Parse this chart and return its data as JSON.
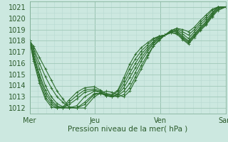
{
  "xlabel": "Pression niveau de la mer( hPa )",
  "bg_color": "#cce8e0",
  "grid_color_major": "#a0c8b8",
  "grid_color_minor": "#b8d8d0",
  "line_color": "#2d6e2d",
  "ylim": [
    1011.5,
    1021.5
  ],
  "yticks": [
    1012,
    1013,
    1014,
    1015,
    1016,
    1017,
    1018,
    1019,
    1020,
    1021
  ],
  "day_positions": [
    0.0,
    0.333,
    0.667,
    1.0
  ],
  "day_labels": [
    "Mer",
    "Jeu",
    "Ven",
    "Sam"
  ],
  "series": [
    {
      "x": [
        0.0,
        0.02,
        0.05,
        0.08,
        0.11,
        0.14,
        0.17,
        0.2,
        0.24,
        0.28,
        0.33,
        0.36,
        0.39,
        0.42,
        0.45,
        0.48,
        0.51,
        0.54,
        0.57,
        0.6,
        0.63,
        0.66,
        0.69,
        0.72,
        0.75,
        0.78,
        0.81,
        0.84,
        0.87,
        0.9,
        0.93,
        0.96,
        1.0
      ],
      "y": [
        1018.0,
        1017.5,
        1016.5,
        1015.5,
        1014.5,
        1013.5,
        1012.8,
        1012.1,
        1012.0,
        1012.0,
        1013.0,
        1013.3,
        1013.5,
        1013.4,
        1013.2,
        1013.0,
        1013.5,
        1014.5,
        1015.5,
        1016.5,
        1017.5,
        1018.0,
        1018.5,
        1018.9,
        1019.1,
        1019.0,
        1018.8,
        1019.2,
        1019.8,
        1020.3,
        1020.8,
        1021.0,
        1021.0
      ]
    },
    {
      "x": [
        0.0,
        0.02,
        0.05,
        0.08,
        0.11,
        0.14,
        0.17,
        0.2,
        0.24,
        0.28,
        0.33,
        0.36,
        0.39,
        0.42,
        0.45,
        0.48,
        0.51,
        0.54,
        0.57,
        0.6,
        0.63,
        0.66,
        0.69,
        0.72,
        0.75,
        0.78,
        0.81,
        0.84,
        0.87,
        0.9,
        0.93,
        0.96,
        1.0
      ],
      "y": [
        1018.0,
        1017.3,
        1016.0,
        1014.8,
        1013.8,
        1013.0,
        1012.5,
        1012.1,
        1012.0,
        1012.3,
        1013.2,
        1013.3,
        1013.2,
        1013.1,
        1013.0,
        1013.2,
        1013.8,
        1014.8,
        1015.8,
        1016.7,
        1017.5,
        1018.1,
        1018.5,
        1018.9,
        1019.1,
        1018.8,
        1018.5,
        1019.0,
        1019.6,
        1020.1,
        1020.7,
        1021.0,
        1021.0
      ]
    },
    {
      "x": [
        0.0,
        0.02,
        0.05,
        0.08,
        0.11,
        0.14,
        0.17,
        0.2,
        0.24,
        0.28,
        0.33,
        0.36,
        0.39,
        0.42,
        0.45,
        0.48,
        0.51,
        0.54,
        0.57,
        0.6,
        0.63,
        0.66,
        0.69,
        0.72,
        0.75,
        0.78,
        0.81,
        0.84,
        0.87,
        0.9,
        0.93,
        0.96,
        1.0
      ],
      "y": [
        1018.0,
        1017.1,
        1015.5,
        1014.0,
        1013.0,
        1012.4,
        1012.1,
        1012.0,
        1012.0,
        1012.5,
        1013.3,
        1013.3,
        1013.1,
        1013.0,
        1013.1,
        1013.5,
        1014.2,
        1015.2,
        1016.2,
        1017.0,
        1017.7,
        1018.2,
        1018.5,
        1018.8,
        1019.0,
        1018.6,
        1018.2,
        1018.8,
        1019.4,
        1019.9,
        1020.5,
        1021.0,
        1021.0
      ]
    },
    {
      "x": [
        0.0,
        0.02,
        0.05,
        0.08,
        0.11,
        0.14,
        0.17,
        0.2,
        0.24,
        0.28,
        0.33,
        0.36,
        0.39,
        0.42,
        0.45,
        0.48,
        0.51,
        0.54,
        0.57,
        0.6,
        0.63,
        0.66,
        0.69,
        0.72,
        0.75,
        0.78,
        0.81,
        0.84,
        0.87,
        0.9,
        0.93,
        0.96,
        1.0
      ],
      "y": [
        1018.0,
        1016.8,
        1015.0,
        1013.6,
        1012.7,
        1012.2,
        1012.0,
        1012.0,
        1012.2,
        1013.0,
        1013.5,
        1013.4,
        1013.1,
        1013.0,
        1013.2,
        1013.8,
        1014.7,
        1015.6,
        1016.5,
        1017.2,
        1017.8,
        1018.3,
        1018.5,
        1018.8,
        1018.9,
        1018.4,
        1018.0,
        1018.6,
        1019.2,
        1019.7,
        1020.4,
        1021.0,
        1021.0
      ]
    },
    {
      "x": [
        0.0,
        0.02,
        0.05,
        0.08,
        0.11,
        0.14,
        0.17,
        0.2,
        0.24,
        0.28,
        0.33,
        0.36,
        0.39,
        0.42,
        0.45,
        0.48,
        0.51,
        0.54,
        0.57,
        0.6,
        0.63,
        0.66,
        0.69,
        0.72,
        0.75,
        0.78,
        0.81,
        0.84,
        0.87,
        0.9,
        0.93,
        0.96,
        1.0
      ],
      "y": [
        1018.0,
        1016.6,
        1014.8,
        1013.3,
        1012.5,
        1012.1,
        1012.0,
        1012.3,
        1012.8,
        1013.4,
        1013.6,
        1013.4,
        1013.1,
        1013.0,
        1013.3,
        1014.1,
        1015.1,
        1016.0,
        1016.8,
        1017.4,
        1017.9,
        1018.4,
        1018.5,
        1018.8,
        1018.8,
        1018.3,
        1017.9,
        1018.5,
        1019.1,
        1019.6,
        1020.3,
        1020.9,
        1021.0
      ]
    },
    {
      "x": [
        0.0,
        0.02,
        0.05,
        0.08,
        0.11,
        0.14,
        0.17,
        0.2,
        0.24,
        0.28,
        0.33,
        0.36,
        0.39,
        0.42,
        0.45,
        0.48,
        0.51,
        0.54,
        0.57,
        0.6,
        0.63,
        0.66,
        0.69,
        0.72,
        0.75,
        0.78,
        0.81,
        0.84,
        0.87,
        0.9,
        0.93,
        0.96,
        1.0
      ],
      "y": [
        1018.0,
        1016.4,
        1014.5,
        1013.0,
        1012.3,
        1012.0,
        1012.0,
        1012.5,
        1013.1,
        1013.6,
        1013.7,
        1013.5,
        1013.2,
        1013.1,
        1013.5,
        1014.4,
        1015.5,
        1016.4,
        1017.1,
        1017.6,
        1018.1,
        1018.4,
        1018.5,
        1018.7,
        1018.7,
        1018.2,
        1017.8,
        1018.4,
        1019.0,
        1019.5,
        1020.2,
        1020.8,
        1021.0
      ]
    },
    {
      "x": [
        0.0,
        0.02,
        0.05,
        0.08,
        0.11,
        0.14,
        0.17,
        0.2,
        0.24,
        0.28,
        0.33,
        0.36,
        0.39,
        0.42,
        0.45,
        0.48,
        0.51,
        0.54,
        0.57,
        0.6,
        0.63,
        0.66,
        0.69,
        0.72,
        0.75,
        0.78,
        0.81,
        0.84,
        0.87,
        0.9,
        0.93,
        0.96,
        1.0
      ],
      "y": [
        1018.0,
        1016.2,
        1014.2,
        1012.8,
        1012.1,
        1012.0,
        1012.1,
        1012.7,
        1013.4,
        1013.8,
        1013.9,
        1013.6,
        1013.3,
        1013.2,
        1013.6,
        1014.7,
        1015.9,
        1016.8,
        1017.4,
        1017.8,
        1018.2,
        1018.4,
        1018.5,
        1018.7,
        1018.6,
        1018.1,
        1017.7,
        1018.3,
        1018.9,
        1019.4,
        1020.1,
        1020.7,
        1021.0
      ]
    }
  ]
}
